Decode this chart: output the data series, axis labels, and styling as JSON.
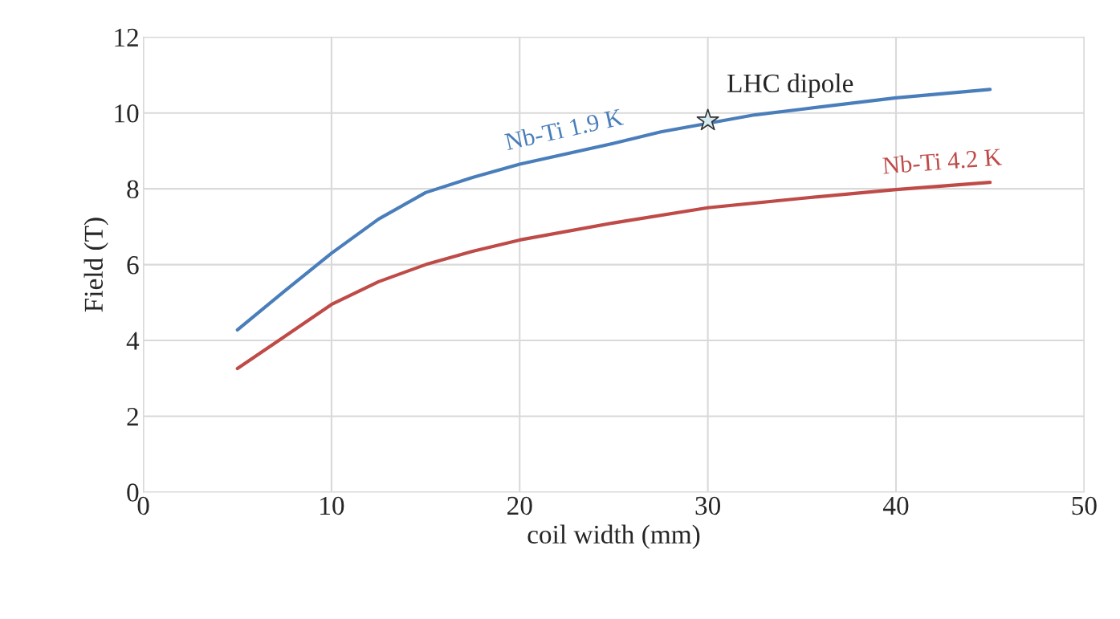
{
  "chart_data": {
    "type": "line",
    "xlabel": "coil width (mm)",
    "ylabel": "Field (T)",
    "xlim": [
      0,
      50
    ],
    "xticks": [
      0,
      10,
      20,
      30,
      40,
      50
    ],
    "ylim": [
      0,
      12
    ],
    "yticks": [
      0,
      2,
      4,
      6,
      8,
      10,
      12
    ],
    "grid": true,
    "legend": false,
    "marker": "none",
    "line_style": "solid",
    "series": [
      {
        "name": "Nb-Ti 1.9 K",
        "color": "#4a7ebb",
        "x": [
          5,
          7.5,
          10,
          12.5,
          15,
          17.5,
          20,
          25,
          27.5,
          32.5,
          35,
          40,
          45
        ],
        "values": [
          4.28,
          5.3,
          6.3,
          7.2,
          7.9,
          8.3,
          8.65,
          9.2,
          9.5,
          9.95,
          10.1,
          10.4,
          10.62
        ]
      },
      {
        "name": "Nb-Ti 4.2 K",
        "color": "#be4b48",
        "x": [
          5,
          7.5,
          10,
          12.5,
          15,
          17.5,
          20,
          25,
          30,
          35,
          40,
          45
        ],
        "values": [
          3.26,
          4.1,
          4.95,
          5.55,
          6.0,
          6.35,
          6.65,
          7.1,
          7.5,
          7.75,
          7.98,
          8.17
        ]
      },
      {
        "name": "LHC dipole",
        "type": "scatter",
        "marker": "star",
        "color": "#d6eaf0",
        "x": [
          30
        ],
        "values": [
          9.8
        ]
      }
    ]
  }
}
